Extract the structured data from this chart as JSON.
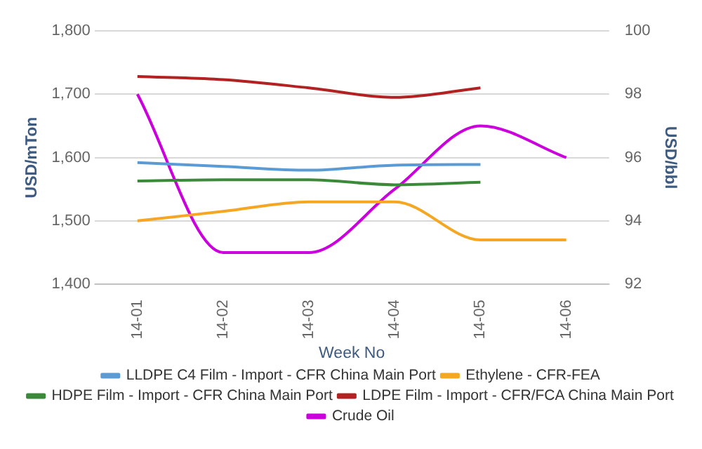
{
  "chart_data": {
    "type": "line",
    "xlabel": "Week No",
    "ylabel": "USD/mTon",
    "y2label": "USD/bbl",
    "categories": [
      "14-01",
      "14-02",
      "14-03",
      "14-04",
      "14-05",
      "14-06"
    ],
    "series": [
      {
        "name": "LLDPE C4 Film - Import - CFR China Main Port",
        "color": "#5b9bd5",
        "values": [
          1592,
          1586,
          1580,
          1588,
          1589,
          null
        ]
      },
      {
        "name": "Ethylene - CFR-FEA",
        "color": "#f5a623",
        "values": [
          1500,
          1515,
          1530,
          1530,
          1470,
          1470
        ]
      },
      {
        "name": "HDPE Film - Import - CFR China Main Port",
        "color": "#3a8a3a",
        "values": [
          1563,
          1565,
          1565,
          1557,
          1561,
          null
        ]
      },
      {
        "name": "LDPE Film - Import - CFR/FCA China Main Port",
        "color": "#b22222",
        "values": [
          1728,
          1723,
          1710,
          1695,
          1710,
          null
        ]
      },
      {
        "name": "Crude Oil",
        "color": "#cc00dd",
        "axis": "y2",
        "values": [
          98,
          93,
          93,
          95,
          97,
          96
        ]
      }
    ],
    "ylim": [
      1400,
      1800
    ],
    "yticks": [
      {
        "value": 1400,
        "label": "1,400"
      },
      {
        "value": 1500,
        "label": "1,500"
      },
      {
        "value": 1600,
        "label": "1,600"
      },
      {
        "value": 1700,
        "label": "1,700"
      },
      {
        "value": 1800,
        "label": "1,800"
      }
    ],
    "y2lim": [
      92,
      100
    ],
    "y2ticks": [
      92,
      94,
      96,
      98,
      100
    ],
    "grid": "y",
    "legend": "bottom",
    "marker": "none",
    "line_style": "solid"
  }
}
